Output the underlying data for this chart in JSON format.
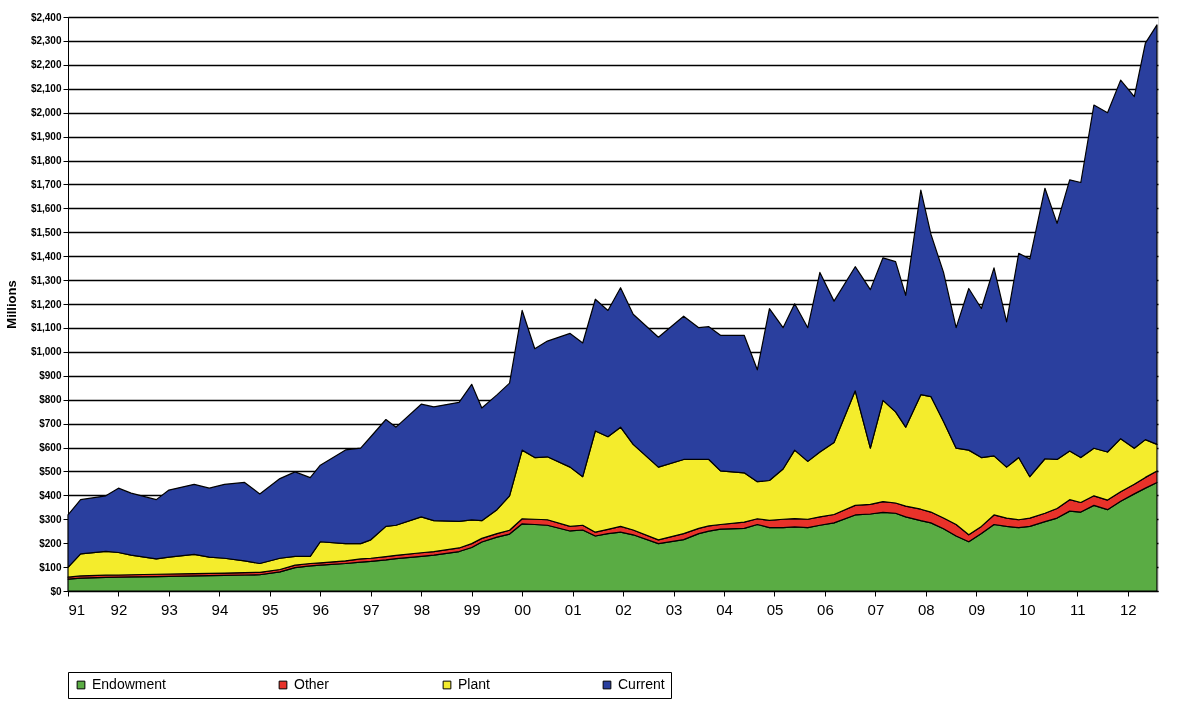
{
  "chart_data": {
    "type": "area",
    "stacked": true,
    "ylabel": "Millions",
    "legend": "bottom",
    "grid": "y",
    "x": [
      1991.0,
      1991.25,
      1991.75,
      1992.0,
      1992.25,
      1992.75,
      1993.0,
      1993.5,
      1993.8,
      1994.1,
      1994.5,
      1994.8,
      1995.2,
      1995.5,
      1995.8,
      1996.0,
      1996.5,
      1996.8,
      1997.0,
      1997.3,
      1997.5,
      1998.0,
      1998.25,
      1998.75,
      1999.0,
      1999.2,
      1999.5,
      1999.75,
      2000.0,
      2000.25,
      2000.5,
      2000.95,
      2001.2,
      2001.45,
      2001.7,
      2001.95,
      2002.2,
      2002.7,
      2003.2,
      2003.5,
      2003.7,
      2003.93,
      2004.4,
      2004.66,
      2004.9,
      2005.17,
      2005.4,
      2005.66,
      2005.9,
      2006.18,
      2006.6,
      2006.9,
      2007.15,
      2007.4,
      2007.6,
      2007.9,
      2008.1,
      2008.35,
      2008.6,
      2008.85,
      2009.1,
      2009.35,
      2009.6,
      2009.84,
      2010.06,
      2010.36,
      2010.6,
      2010.85,
      2011.07,
      2011.33,
      2011.6,
      2011.86,
      2012.13,
      2012.35,
      2012.58
    ],
    "series": [
      {
        "name": "Endowment",
        "color": "#5aac44",
        "values": [
          50,
          54,
          57,
          58,
          59,
          60,
          61,
          63,
          64,
          65,
          67,
          68,
          80,
          98,
          105,
          108,
          115,
          121,
          124,
          130,
          135,
          145,
          150,
          165,
          182,
          205,
          225,
          238,
          281,
          278,
          275,
          251,
          255,
          230,
          240,
          246,
          235,
          198,
          215,
          240,
          250,
          259,
          262,
          278,
          265,
          265,
          268,
          265,
          275,
          285,
          318,
          322,
          329,
          325,
          310,
          294,
          285,
          260,
          230,
          206,
          240,
          278,
          270,
          265,
          270,
          290,
          305,
          334,
          330,
          358,
          340,
          375,
          406,
          430,
          454
        ]
      },
      {
        "name": "Other",
        "color": "#e8322a",
        "values": [
          8,
          9,
          9,
          9,
          9,
          10,
          10,
          10,
          10,
          10,
          10,
          10,
          10,
          10,
          10,
          10,
          11,
          13,
          13,
          14,
          14,
          15,
          15,
          15,
          16,
          15,
          15,
          16,
          21,
          22,
          23,
          19,
          20,
          16,
          18,
          24,
          20,
          16,
          25,
          22,
          22,
          19,
          26,
          24,
          30,
          35,
          35,
          35,
          35,
          35,
          40,
          40,
          45,
          43,
          45,
          48,
          45,
          45,
          48,
          29,
          30,
          40,
          35,
          33,
          35,
          35,
          40,
          48,
          40,
          40,
          40,
          40,
          40,
          45,
          48
        ]
      },
      {
        "name": "Plant",
        "color": "#f4ec2c",
        "values": [
          41,
          92,
          100,
          94,
          82,
          64,
          71,
          80,
          68,
          62,
          49,
          37,
          47,
          37,
          30,
          88,
          72,
          64,
          77,
          126,
          126,
          150,
          129,
          111,
          99,
          74,
          100,
          144,
          287,
          258,
          263,
          248,
          203,
          423,
          387,
          415,
          358,
          304,
          310,
          288,
          278,
          224,
          206,
          155,
          167,
          210,
          286,
          242,
          271,
          301,
          479,
          235,
          423,
          381,
          330,
          479,
          483,
          404,
          319,
          354,
          288,
          247,
          213,
          260,
          173,
          228,
          205,
          203,
          188,
          199,
          201,
          222,
          151,
          158,
          111
        ]
      },
      {
        "name": "Current",
        "color": "#2a3f9e",
        "values": [
          219,
          227,
          232,
          269,
          259,
          248,
          280,
          293,
          288,
          309,
          328,
          291,
          333,
          353,
          329,
          320,
          392,
          399,
          431,
          447,
          410,
          471,
          476,
          498,
          567,
          471,
          480,
          471,
          584,
          455,
          484,
          559,
          559,
          551,
          528,
          583,
          544,
          543,
          599,
          551,
          555,
          567,
          575,
          468,
          719,
          591,
          612,
          559,
          751,
          591,
          519,
          663,
          596,
          628,
          551,
          855,
          679,
          623,
          504,
          676,
          623,
          786,
          607,
          854,
          910,
          1131,
          987,
          1134,
          1150,
          1435,
          1419,
          1499,
          1470,
          1658,
          1754
        ]
      }
    ],
    "xlim": [
      1991,
      2012.6
    ],
    "xticks": [
      {
        "value": 1991,
        "label": "91"
      },
      {
        "value": 1992,
        "label": "92"
      },
      {
        "value": 1993,
        "label": "93"
      },
      {
        "value": 1994,
        "label": "94"
      },
      {
        "value": 1995,
        "label": "95"
      },
      {
        "value": 1996,
        "label": "96"
      },
      {
        "value": 1997,
        "label": "97"
      },
      {
        "value": 1998,
        "label": "98"
      },
      {
        "value": 1999,
        "label": "99"
      },
      {
        "value": 2000,
        "label": "00"
      },
      {
        "value": 2001,
        "label": "01"
      },
      {
        "value": 2002,
        "label": "02"
      },
      {
        "value": 2003,
        "label": "03"
      },
      {
        "value": 2004,
        "label": "04"
      },
      {
        "value": 2005,
        "label": "05"
      },
      {
        "value": 2006,
        "label": "06"
      },
      {
        "value": 2007,
        "label": "07"
      },
      {
        "value": 2008,
        "label": "08"
      },
      {
        "value": 2009,
        "label": "09"
      },
      {
        "value": 2010,
        "label": "10"
      },
      {
        "value": 2011,
        "label": "11"
      },
      {
        "value": 2012,
        "label": "12"
      }
    ],
    "ylim": [
      0,
      2400
    ],
    "yticks": [
      {
        "value": 0,
        "label": "$0"
      },
      {
        "value": 100,
        "label": "$100"
      },
      {
        "value": 200,
        "label": "$200"
      },
      {
        "value": 300,
        "label": "$300"
      },
      {
        "value": 400,
        "label": "$400"
      },
      {
        "value": 500,
        "label": "$500"
      },
      {
        "value": 600,
        "label": "$600"
      },
      {
        "value": 700,
        "label": "$700"
      },
      {
        "value": 800,
        "label": "$800"
      },
      {
        "value": 900,
        "label": "$900"
      },
      {
        "value": 1000,
        "label": "$1,000"
      },
      {
        "value": 1100,
        "label": "$1,100"
      },
      {
        "value": 1200,
        "label": "$1,200"
      },
      {
        "value": 1300,
        "label": "$1,300"
      },
      {
        "value": 1400,
        "label": "$1,400"
      },
      {
        "value": 1500,
        "label": "$1,500"
      },
      {
        "value": 1600,
        "label": "$1,600"
      },
      {
        "value": 1700,
        "label": "$1,700"
      },
      {
        "value": 1800,
        "label": "$1,800"
      },
      {
        "value": 1900,
        "label": "$1,900"
      },
      {
        "value": 2000,
        "label": "$2,000"
      },
      {
        "value": 2100,
        "label": "$2,100"
      },
      {
        "value": 2200,
        "label": "$2,200"
      },
      {
        "value": 2300,
        "label": "$2,300"
      },
      {
        "value": 2400,
        "label": "$2,400"
      }
    ]
  }
}
